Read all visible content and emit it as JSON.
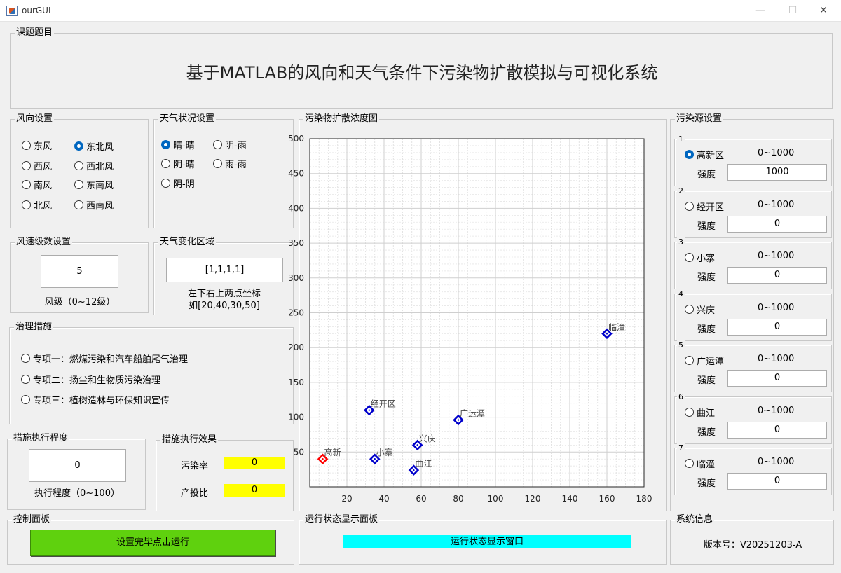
{
  "window": {
    "title": "ourGUI",
    "min": "—",
    "max": "☐",
    "close": "✕"
  },
  "topic": {
    "panel_title": "课题题目",
    "title": "基于MATLAB的风向和天气条件下污染物扩散模拟与可视化系统"
  },
  "wind_dir": {
    "panel_title": "风向设置",
    "options": [
      "东风",
      "东北风",
      "西风",
      "西北风",
      "南风",
      "东南风",
      "北风",
      "西南风"
    ],
    "selected": "东北风"
  },
  "weather": {
    "panel_title": "天气状况设置",
    "options": [
      "晴-晴",
      "阴-雨",
      "阴-晴",
      "雨-雨",
      "阴-阴"
    ],
    "selected": "晴-晴"
  },
  "wind_speed": {
    "panel_title": "风速级数设置",
    "value": "5",
    "caption": "风级（0~12级）"
  },
  "weather_region": {
    "panel_title": "天气变化区域",
    "value": "[1,1,1,1]",
    "caption1": "左下右上两点坐标",
    "caption2": "如[20,40,30,50]"
  },
  "measures": {
    "panel_title": "治理措施",
    "options": [
      "专项一：燃煤污染和汽车船舶尾气治理",
      "专项二：扬尘和生物质污染治理",
      "专项三：植树造林与环保知识宣传"
    ]
  },
  "exec_degree": {
    "panel_title": "措施执行程度",
    "value": "0",
    "caption": "执行程度（0~100）"
  },
  "exec_effect": {
    "panel_title": "措施执行效果",
    "pollution_label": "污染率",
    "pollution_value": "0",
    "ratio_label": "产投比",
    "ratio_value": "0"
  },
  "control": {
    "panel_title": "控制面板",
    "run_label": "设置完毕点击运行"
  },
  "chart_panel": {
    "panel_title": "污染物扩散浓度图"
  },
  "status": {
    "panel_title": "运行状态显示面板",
    "text": "运行状态显示窗口"
  },
  "sysinfo": {
    "panel_title": "系统信息",
    "version": "版本号：V20251203-A"
  },
  "sources": {
    "panel_title": "污染源设置",
    "strength_label": "强度",
    "range_label": "0~1000",
    "items": [
      {
        "num": "1",
        "name": "高新区",
        "value": "1000",
        "selected": true
      },
      {
        "num": "2",
        "name": "经开区",
        "value": "0",
        "selected": false
      },
      {
        "num": "3",
        "name": "小寨",
        "value": "0",
        "selected": false
      },
      {
        "num": "4",
        "name": "兴庆",
        "value": "0",
        "selected": false
      },
      {
        "num": "5",
        "name": "广运潭",
        "value": "0",
        "selected": false
      },
      {
        "num": "6",
        "name": "曲江",
        "value": "0",
        "selected": false
      },
      {
        "num": "7",
        "name": "临潼",
        "value": "0",
        "selected": false
      }
    ]
  },
  "chart_data": {
    "type": "scatter",
    "xlim": [
      0,
      180
    ],
    "ylim": [
      0,
      500
    ],
    "x_ticks": [
      20,
      40,
      60,
      80,
      100,
      120,
      140,
      160,
      180
    ],
    "y_ticks": [
      50,
      100,
      150,
      200,
      250,
      300,
      350,
      400,
      450,
      500
    ],
    "grid": true,
    "points": [
      {
        "label": "高新",
        "x": 7,
        "y": 40,
        "color": "#ff0000"
      },
      {
        "label": "经开区",
        "x": 32,
        "y": 110,
        "color": "#0000cc"
      },
      {
        "label": "小寨",
        "x": 35,
        "y": 40,
        "color": "#0000cc"
      },
      {
        "label": "曲江",
        "x": 56,
        "y": 24,
        "color": "#0000cc"
      },
      {
        "label": "兴庆",
        "x": 58,
        "y": 60,
        "color": "#0000cc"
      },
      {
        "label": "广运潭",
        "x": 80,
        "y": 96,
        "color": "#0000cc"
      },
      {
        "label": "临潼",
        "x": 160,
        "y": 220,
        "color": "#0000cc"
      }
    ]
  }
}
